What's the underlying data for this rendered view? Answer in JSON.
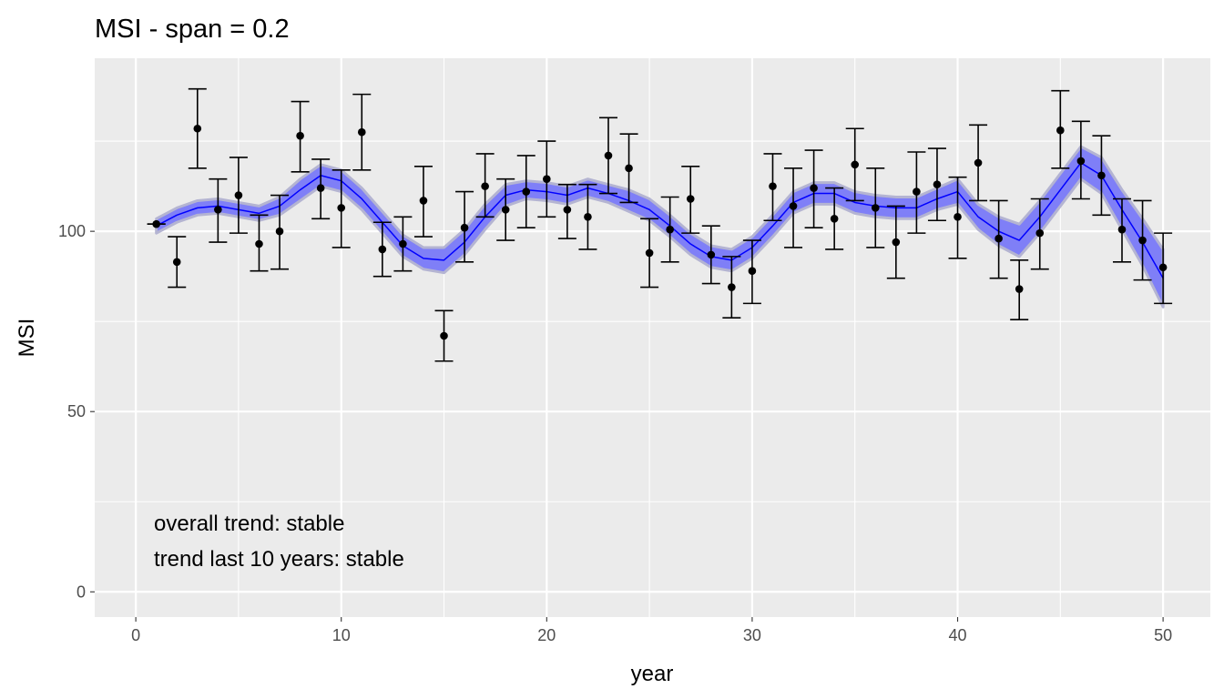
{
  "chart_data": {
    "type": "scatter",
    "title": "MSI - span = 0.2",
    "xlabel": "year",
    "ylabel": "MSI",
    "xlim": [
      -2,
      52.3
    ],
    "ylim": [
      -7,
      148
    ],
    "x_ticks": [
      0,
      10,
      20,
      30,
      40,
      50
    ],
    "y_ticks": [
      0,
      50,
      100
    ],
    "x_tick_labels": [
      "0",
      "10",
      "20",
      "30",
      "40",
      "50"
    ],
    "y_tick_labels": [
      "0",
      "50",
      "100"
    ],
    "grid": true,
    "legend": "none",
    "annotations": [
      "overall trend: stable",
      "trend last 10 years: stable"
    ],
    "colors": {
      "panel": "#ebebeb",
      "grid": "#ffffff",
      "points": "#000000",
      "smooth_line": "#0000ff",
      "ribbon_inner": "#7f7ff7",
      "ribbon_outer": "#b4b4d2"
    },
    "points": {
      "x": [
        1,
        2,
        3,
        4,
        5,
        6,
        7,
        8,
        9,
        10,
        11,
        12,
        13,
        14,
        15,
        16,
        17,
        18,
        19,
        20,
        21,
        22,
        23,
        24,
        25,
        26,
        27,
        28,
        29,
        30,
        31,
        32,
        33,
        34,
        35,
        36,
        37,
        38,
        39,
        40,
        41,
        42,
        43,
        44,
        45,
        46,
        47,
        48,
        49,
        50
      ],
      "y": [
        102,
        91.5,
        128.5,
        106,
        110,
        96.5,
        100,
        126.5,
        112,
        106.5,
        127.5,
        95,
        96.5,
        108.5,
        71,
        101,
        112.5,
        106,
        111,
        114.5,
        106,
        104,
        121,
        117.5,
        94,
        100.5,
        109,
        93.5,
        84.5,
        89,
        112.5,
        107,
        112,
        103.5,
        118.5,
        106.5,
        97,
        111,
        113,
        104,
        119,
        98,
        84,
        99.5,
        128,
        119.5,
        115.5,
        100.5,
        97.5,
        90
      ],
      "y_low": [
        102,
        84.5,
        117.5,
        97,
        99.5,
        89,
        89.5,
        116.5,
        103.5,
        95.5,
        117,
        87.5,
        89,
        98.5,
        64,
        91.5,
        104,
        97.5,
        101,
        104,
        98,
        95,
        110.5,
        108,
        84.5,
        91.5,
        99.5,
        85.5,
        76,
        80,
        103,
        95.5,
        101,
        95,
        108.5,
        95.5,
        87,
        99.5,
        103,
        92.5,
        108.5,
        87,
        75.5,
        89.5,
        117.5,
        109,
        104.5,
        91.5,
        86.5,
        80
      ],
      "y_high": [
        102,
        98.5,
        139.5,
        114.5,
        120.5,
        104.5,
        110,
        136,
        120,
        117,
        138,
        102.5,
        104,
        118,
        78,
        111,
        121.5,
        114.5,
        121,
        125,
        113,
        113,
        131.5,
        127,
        103.5,
        109.5,
        118,
        101.5,
        93,
        97.5,
        121.5,
        117.5,
        122.5,
        112,
        128.5,
        117.5,
        107,
        122,
        123,
        115,
        129.5,
        108.5,
        92,
        109,
        139,
        130.5,
        126.5,
        109,
        108.5,
        99.5
      ]
    },
    "smooth": {
      "x": [
        1,
        2,
        3,
        4,
        5,
        6,
        7,
        8,
        9,
        10,
        11,
        12,
        13,
        14,
        15,
        16,
        17,
        18,
        19,
        20,
        21,
        22,
        23,
        24,
        25,
        26,
        27,
        28,
        29,
        30,
        31,
        32,
        33,
        34,
        35,
        36,
        37,
        38,
        39,
        40,
        41,
        42,
        43,
        44,
        45,
        46,
        47,
        48,
        49,
        50
      ],
      "y": [
        101.5,
        104.5,
        106.5,
        107,
        106,
        105,
        107,
        111.5,
        115.5,
        114,
        109,
        102.5,
        96,
        92.5,
        92,
        97,
        104,
        110,
        111.5,
        111,
        110,
        112,
        110.5,
        108.5,
        106,
        101.5,
        96.5,
        93,
        92,
        95.5,
        101.5,
        108,
        110.5,
        110.5,
        108,
        107,
        106.5,
        106.5,
        109,
        111,
        104,
        100,
        97.5,
        104,
        111.5,
        119,
        115.5,
        106,
        97,
        87
      ],
      "ci_low": [
        99.5,
        102.5,
        104.5,
        105,
        104,
        103,
        104.5,
        108.5,
        112.5,
        111,
        106,
        99.5,
        93,
        89.5,
        88.5,
        93.5,
        100.5,
        107,
        109,
        108.5,
        107.5,
        109.5,
        108,
        105.5,
        103,
        98.5,
        93.5,
        90,
        89,
        92.5,
        98.5,
        105,
        107.5,
        107.5,
        105,
        104,
        103.5,
        103.5,
        106,
        107.5,
        100.5,
        96,
        93,
        99.5,
        107,
        114.5,
        110.5,
        100.5,
        90.5,
        79
      ],
      "ci_high": [
        103.5,
        106.5,
        108.5,
        109,
        108,
        107,
        109.5,
        114.5,
        118.5,
        117,
        112,
        105.5,
        99,
        95.5,
        95.5,
        100.5,
        107.5,
        113,
        114,
        113.5,
        112.5,
        114.5,
        113,
        111.5,
        109,
        104.5,
        99.5,
        96,
        95,
        98.5,
        104.5,
        111,
        113.5,
        113.5,
        111,
        110,
        109.5,
        109.5,
        112,
        114.5,
        107.5,
        104,
        102,
        108.5,
        116,
        123.5,
        120.5,
        111.5,
        103.5,
        95
      ]
    }
  }
}
